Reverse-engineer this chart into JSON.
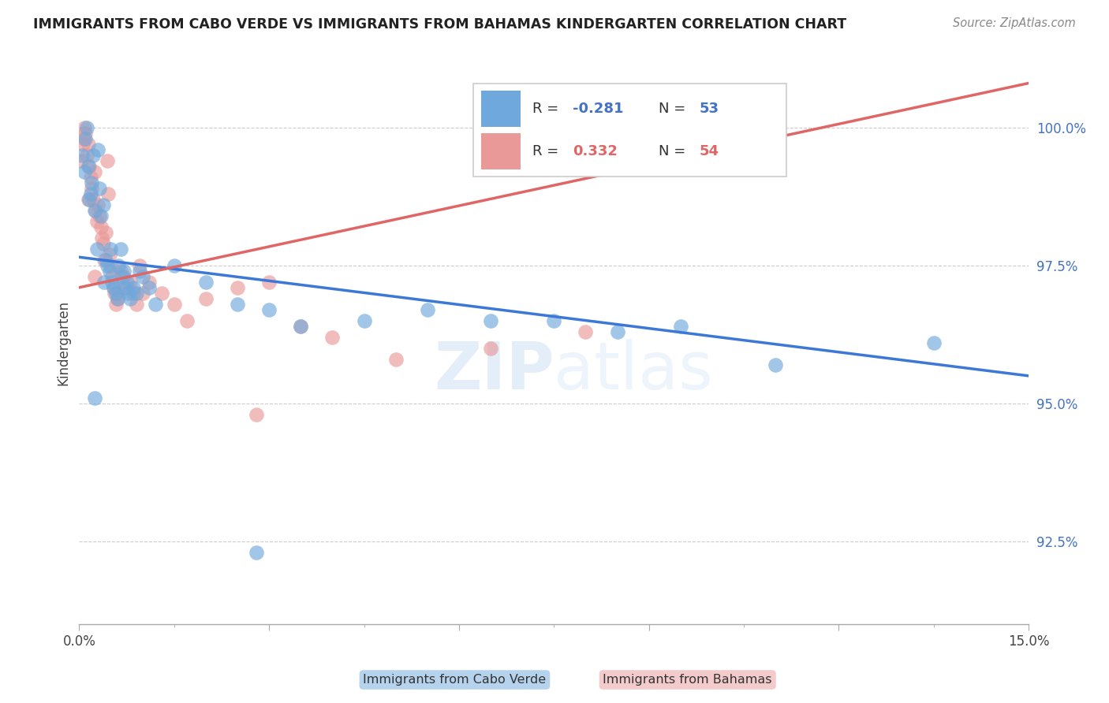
{
  "title": "IMMIGRANTS FROM CABO VERDE VS IMMIGRANTS FROM BAHAMAS KINDERGARTEN CORRELATION CHART",
  "source": "Source: ZipAtlas.com",
  "ylabel": "Kindergarten",
  "ytick_values": [
    100.0,
    97.5,
    95.0,
    92.5
  ],
  "xmin": 0.0,
  "xmax": 15.0,
  "ymin": 91.0,
  "ymax": 101.2,
  "blue_R": -0.281,
  "blue_N": 53,
  "pink_R": 0.332,
  "pink_N": 54,
  "blue_label": "Immigrants from Cabo Verde",
  "pink_label": "Immigrants from Bahamas",
  "blue_color": "#6fa8dc",
  "pink_color": "#ea9999",
  "blue_line_color": "#3c78d8",
  "pink_line_color": "#e06666",
  "watermark": "ZIPatlas",
  "blue_line_x0": 0.0,
  "blue_line_y0": 97.65,
  "blue_line_x1": 15.0,
  "blue_line_y1": 95.5,
  "pink_line_x0": 0.0,
  "pink_line_y0": 97.1,
  "pink_line_x1": 15.0,
  "pink_line_y1": 100.8,
  "blue_x": [
    0.05,
    0.1,
    0.12,
    0.15,
    0.18,
    0.2,
    0.22,
    0.25,
    0.28,
    0.3,
    0.32,
    0.35,
    0.38,
    0.4,
    0.42,
    0.45,
    0.48,
    0.5,
    0.52,
    0.55,
    0.58,
    0.6,
    0.62,
    0.65,
    0.68,
    0.7,
    0.72,
    0.75,
    0.78,
    0.8,
    0.85,
    0.9,
    0.95,
    1.0,
    1.1,
    1.2,
    1.5,
    2.0,
    2.5,
    3.0,
    3.5,
    4.5,
    5.5,
    6.5,
    7.5,
    8.5,
    9.5,
    11.0,
    13.5,
    2.8,
    0.08,
    0.16,
    0.24
  ],
  "blue_y": [
    99.5,
    99.8,
    100.0,
    99.3,
    98.8,
    99.0,
    99.5,
    98.5,
    97.8,
    99.6,
    98.9,
    98.4,
    98.6,
    97.2,
    97.6,
    97.5,
    97.4,
    97.8,
    97.2,
    97.1,
    97.0,
    96.9,
    97.5,
    97.8,
    97.3,
    97.4,
    97.1,
    97.2,
    97.0,
    96.9,
    97.1,
    97.0,
    97.4,
    97.3,
    97.1,
    96.8,
    97.5,
    97.2,
    96.8,
    96.7,
    96.4,
    96.5,
    96.7,
    96.5,
    96.5,
    96.3,
    96.4,
    95.7,
    96.1,
    92.3,
    99.2,
    98.7,
    95.1
  ],
  "pink_x": [
    0.03,
    0.06,
    0.08,
    0.1,
    0.12,
    0.14,
    0.16,
    0.18,
    0.2,
    0.22,
    0.24,
    0.26,
    0.28,
    0.3,
    0.32,
    0.34,
    0.36,
    0.38,
    0.4,
    0.42,
    0.44,
    0.46,
    0.48,
    0.5,
    0.52,
    0.54,
    0.56,
    0.58,
    0.6,
    0.62,
    0.65,
    0.7,
    0.75,
    0.8,
    0.85,
    0.9,
    0.95,
    1.0,
    1.1,
    1.3,
    1.5,
    1.7,
    2.0,
    2.5,
    3.0,
    3.5,
    4.0,
    5.0,
    6.5,
    8.0,
    0.07,
    0.15,
    0.25,
    2.8
  ],
  "pink_y": [
    99.4,
    99.7,
    100.0,
    99.9,
    99.5,
    99.7,
    99.3,
    99.1,
    98.9,
    98.7,
    99.2,
    98.5,
    98.3,
    98.6,
    98.4,
    98.2,
    98.0,
    97.9,
    97.6,
    98.1,
    99.4,
    98.8,
    97.7,
    97.5,
    97.3,
    97.1,
    97.0,
    96.8,
    96.9,
    97.0,
    97.4,
    97.3,
    97.1,
    97.2,
    97.0,
    96.8,
    97.5,
    97.0,
    97.2,
    97.0,
    96.8,
    96.5,
    96.9,
    97.1,
    97.2,
    96.4,
    96.2,
    95.8,
    96.0,
    96.3,
    99.8,
    98.7,
    97.3,
    94.8
  ]
}
